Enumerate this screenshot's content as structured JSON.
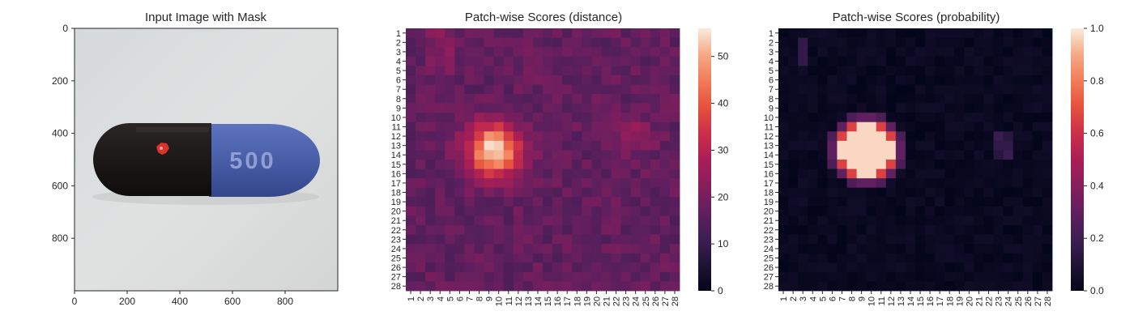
{
  "chart_data": [
    {
      "type": "image",
      "title": "Input Image with Mask",
      "xlim": [
        0,
        1000
      ],
      "ylim": [
        1000,
        0
      ],
      "x_ticks": [
        0,
        200,
        400,
        600,
        800
      ],
      "y_ticks": [
        0,
        200,
        400,
        600,
        800
      ],
      "description": "Black and blue capsule labeled 500 on light gray background; red mask on small defect on black half",
      "capsule_print": "500",
      "capsule_colors": {
        "left": "#1e1a1a",
        "right": "#4a5fa8",
        "background": "#dfe1e1",
        "mask": "#d9342c"
      }
    },
    {
      "type": "heatmap",
      "title": "Patch-wise Scores (distance)",
      "rows": [
        "1",
        "2",
        "3",
        "4",
        "5",
        "6",
        "7",
        "8",
        "9",
        "10",
        "11",
        "12",
        "13",
        "14",
        "15",
        "16",
        "17",
        "18",
        "19",
        "20",
        "21",
        "22",
        "23",
        "24",
        "25",
        "26",
        "27",
        "28"
      ],
      "cols": [
        "1",
        "2",
        "3",
        "4",
        "5",
        "6",
        "7",
        "8",
        "9",
        "10",
        "11",
        "12",
        "13",
        "14",
        "15",
        "16",
        "17",
        "18",
        "19",
        "20",
        "21",
        "22",
        "23",
        "24",
        "25",
        "26",
        "27",
        "28"
      ],
      "colorbar": {
        "min": 0,
        "max": 56,
        "ticks": [
          0,
          10,
          20,
          30,
          40,
          50
        ],
        "colormap": "rocket"
      },
      "hotspot": {
        "row_center": 13.5,
        "col_center": 9.5,
        "peak": 56
      },
      "secondary_hotspot": {
        "row_center": 12,
        "col_center": 24,
        "peak": 28
      },
      "background_level": 17
    },
    {
      "type": "heatmap",
      "title": "Patch-wise Scores (probability)",
      "rows": [
        "1",
        "2",
        "3",
        "4",
        "5",
        "6",
        "7",
        "8",
        "9",
        "10",
        "11",
        "12",
        "13",
        "14",
        "15",
        "16",
        "17",
        "18",
        "19",
        "20",
        "21",
        "22",
        "23",
        "24",
        "25",
        "26",
        "27",
        "28"
      ],
      "cols": [
        "1",
        "2",
        "3",
        "4",
        "5",
        "6",
        "7",
        "8",
        "9",
        "10",
        "11",
        "12",
        "13",
        "14",
        "15",
        "16",
        "17",
        "18",
        "19",
        "20",
        "21",
        "22",
        "23",
        "24",
        "25",
        "26",
        "27",
        "28"
      ],
      "colorbar": {
        "min": 0.0,
        "max": 1.0,
        "ticks": [
          "0.0",
          "0.2",
          "0.4",
          "0.6",
          "0.8",
          "1.0"
        ],
        "colormap": "rocket"
      },
      "hotspot": {
        "row_center": 13.5,
        "col_center": 9.5,
        "peak": 1.0
      },
      "background_level": 0.0
    }
  ]
}
